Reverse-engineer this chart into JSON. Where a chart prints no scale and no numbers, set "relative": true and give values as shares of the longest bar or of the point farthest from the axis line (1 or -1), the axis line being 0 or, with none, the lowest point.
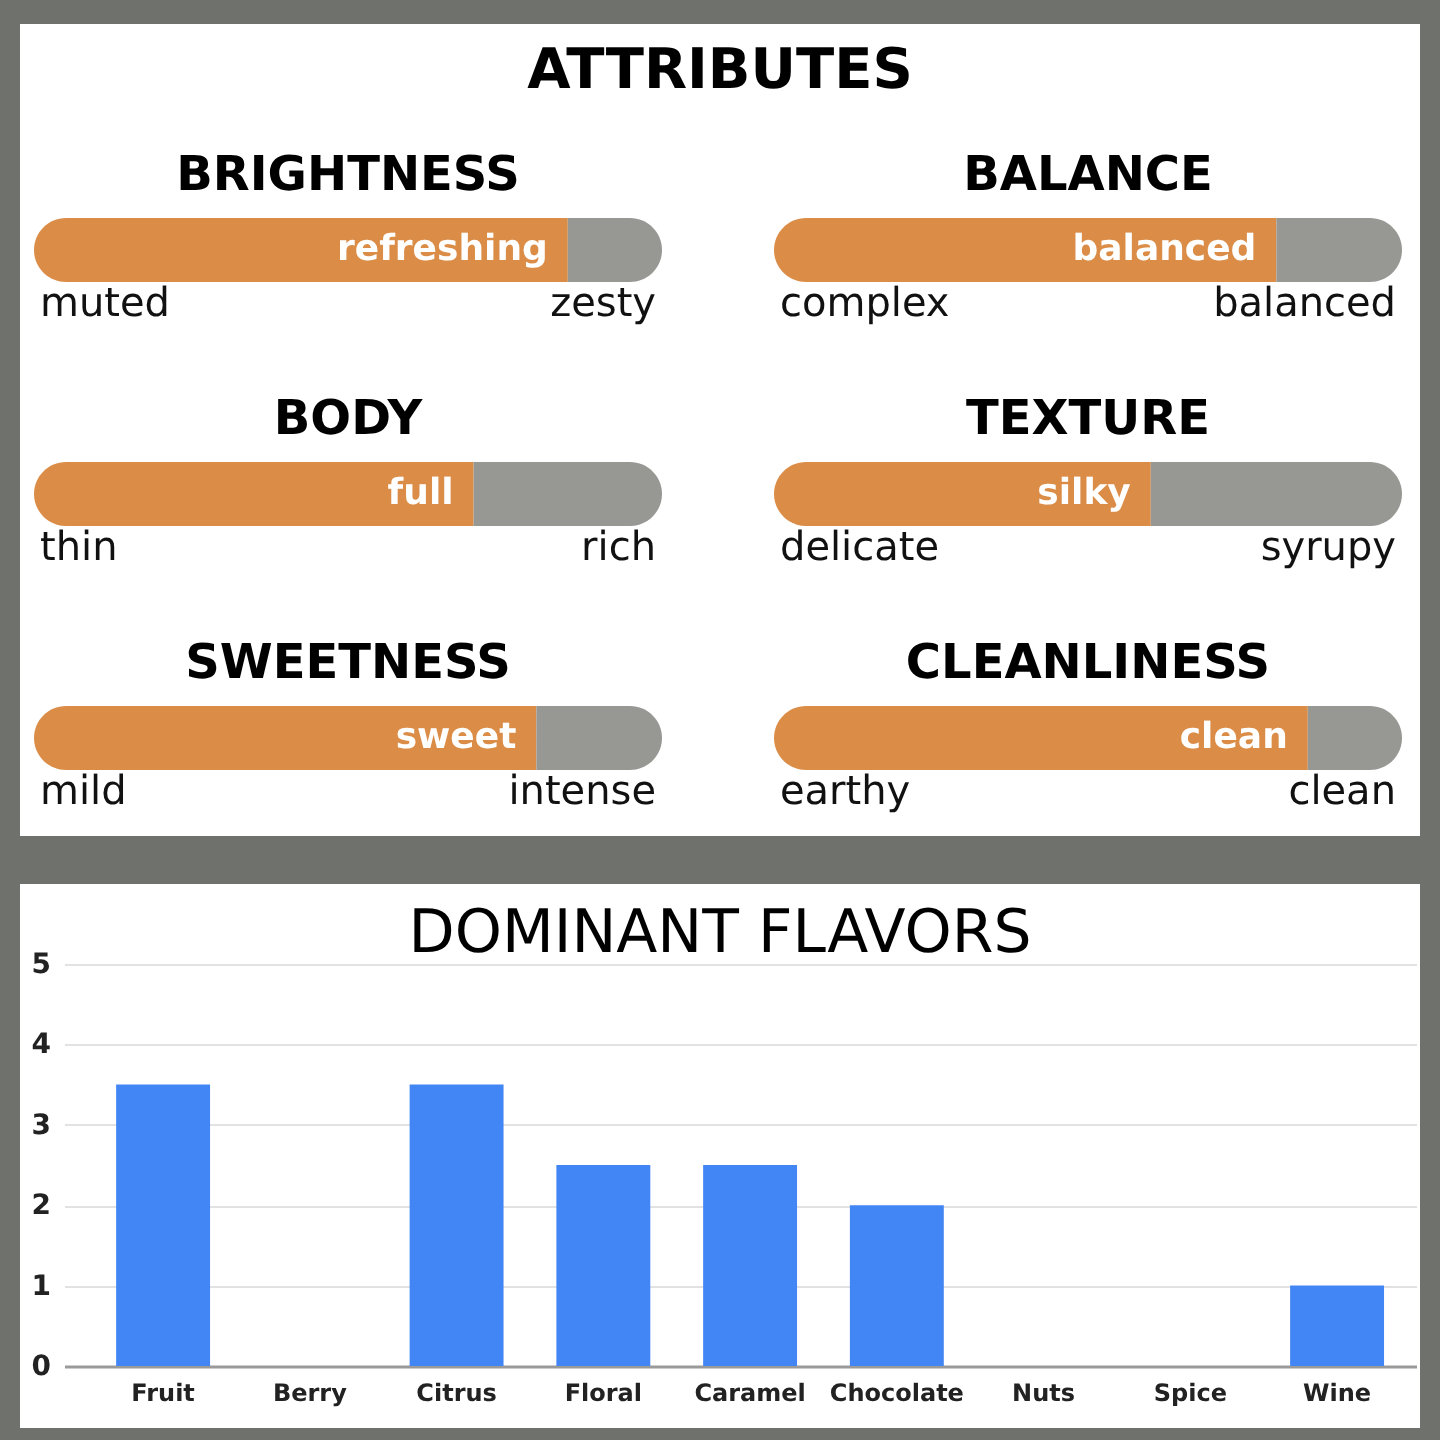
{
  "chart_data": [
    {
      "type": "other",
      "title": "ATTRIBUTES"
    },
    {
      "type": "bar",
      "orientation": "horizontal",
      "stacked": true,
      "relative": true,
      "title": "BRIGHTNESS",
      "categories": [
        null
      ],
      "series": [
        {
          "color": "#db8d47",
          "values": [
            0.85
          ]
        },
        {
          "color": "#979894",
          "values": [
            0.15
          ]
        }
      ],
      "annotations": [
        "muted",
        "zesty",
        {
          "text": "refreshing",
          "x": 0.85
        }
      ]
    },
    {
      "type": "bar",
      "orientation": "horizontal",
      "stacked": true,
      "relative": true,
      "title": "BALANCE",
      "categories": [
        null
      ],
      "series": [
        {
          "color": "#db8d47",
          "values": [
            0.8
          ]
        },
        {
          "color": "#979894",
          "values": [
            0.2
          ]
        }
      ],
      "annotations": [
        "complex",
        "balanced",
        {
          "text": "balanced",
          "x": 0.8
        }
      ]
    },
    {
      "type": "bar",
      "orientation": "horizontal",
      "stacked": true,
      "relative": true,
      "title": "BODY",
      "categories": [
        null
      ],
      "series": [
        {
          "color": "#db8d47",
          "values": [
            0.7
          ]
        },
        {
          "color": "#979894",
          "values": [
            0.3
          ]
        }
      ],
      "annotations": [
        "thin",
        "rich",
        {
          "text": "full",
          "x": 0.7
        }
      ]
    },
    {
      "type": "bar",
      "orientation": "horizontal",
      "stacked": true,
      "relative": true,
      "title": "TEXTURE",
      "categories": [
        null
      ],
      "series": [
        {
          "color": "#db8d47",
          "values": [
            0.6
          ]
        },
        {
          "color": "#979894",
          "values": [
            0.4
          ]
        }
      ],
      "annotations": [
        "delicate",
        "syrupy",
        {
          "text": "silky",
          "x": 0.6
        }
      ]
    },
    {
      "type": "bar",
      "orientation": "horizontal",
      "stacked": true,
      "relative": true,
      "title": "SWEETNESS",
      "categories": [
        null
      ],
      "series": [
        {
          "color": "#db8d47",
          "values": [
            0.8
          ]
        },
        {
          "color": "#979894",
          "values": [
            0.2
          ]
        }
      ],
      "annotations": [
        "mild",
        "intense",
        {
          "text": "sweet",
          "x": 0.8
        }
      ]
    },
    {
      "type": "bar",
      "orientation": "horizontal",
      "stacked": true,
      "relative": true,
      "title": "CLEANLINESS",
      "categories": [
        null
      ],
      "series": [
        {
          "color": "#db8d47",
          "values": [
            0.85
          ]
        },
        {
          "color": "#979894",
          "values": [
            0.15
          ]
        }
      ],
      "annotations": [
        "earthy",
        "clean",
        {
          "text": "clean",
          "x": 0.85
        }
      ]
    },
    {
      "type": "bar",
      "title": "DOMINANT FLAVORS",
      "categories": [
        "Fruit",
        "Berry",
        "Citrus",
        "Floral",
        "Caramel",
        "Chocolate",
        "Nuts",
        "Spice",
        "Wine"
      ],
      "values": [
        3.5,
        0,
        3.5,
        2.5,
        2.5,
        2,
        0,
        0,
        1
      ],
      "color": "#4285f4",
      "ylim": [
        0,
        5
      ],
      "yticks": [
        0,
        1,
        2,
        3,
        4,
        5
      ],
      "grid": "y"
    }
  ]
}
